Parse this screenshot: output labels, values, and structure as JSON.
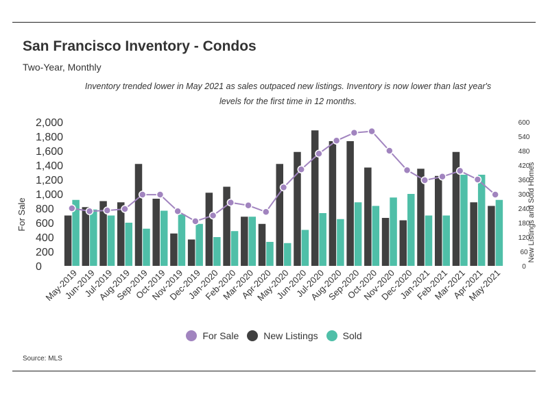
{
  "header": {
    "title": "San Francisco Inventory - Condos",
    "subtitle": "Two-Year, Monthly",
    "note": "Inventory trended lower in May 2021 as sales outpaced new listings. Inventory is now lower than last year's levels for the first time in 12 months."
  },
  "footer": {
    "source": "Source:  MLS"
  },
  "colors": {
    "for_sale": "#a184bf",
    "new_listings": "#404040",
    "sold": "#4fbfa8"
  },
  "chart_data": {
    "type": "bar",
    "categories": [
      "May-2019",
      "Jun-2019",
      "Jul-2019",
      "Aug-2019",
      "Sep-2019",
      "Oct-2019",
      "Nov-2019",
      "Dec-2019",
      "Jan-2020",
      "Feb-2020",
      "Mar-2020",
      "Apr-2020",
      "May-2020",
      "Jun-2020",
      "Jul-2020",
      "Aug-2020",
      "Sep-2020",
      "Oct-2020",
      "Nov-2020",
      "Dec-2020",
      "Jan-2021",
      "Feb-2021",
      "Mar-2021",
      "Apr-2021",
      "May-2021"
    ],
    "series": [
      {
        "name": "For Sale",
        "kind": "line",
        "axis": "left",
        "values": [
          800,
          760,
          770,
          790,
          990,
          990,
          760,
          620,
          700,
          880,
          840,
          750,
          1090,
          1340,
          1560,
          1740,
          1850,
          1870,
          1600,
          1330,
          1190,
          1240,
          1320,
          1200,
          990
        ]
      },
      {
        "name": "New Listings",
        "kind": "bar",
        "axis": "right",
        "values": [
          210,
          245,
          270,
          265,
          425,
          280,
          135,
          110,
          305,
          330,
          205,
          175,
          425,
          475,
          565,
          520,
          520,
          410,
          200,
          190,
          405,
          375,
          475,
          265,
          250
        ]
      },
      {
        "name": "Sold",
        "kind": "bar",
        "axis": "right",
        "values": [
          275,
          235,
          210,
          180,
          155,
          230,
          215,
          175,
          120,
          145,
          205,
          100,
          95,
          150,
          220,
          195,
          265,
          250,
          285,
          300,
          210,
          210,
          380,
          380,
          275
        ]
      }
    ],
    "ylabel": "For Sale",
    "y2label": "New Listings and Sold Homes",
    "ylim": [
      0,
      2000
    ],
    "y2lim": [
      0,
      600
    ],
    "yticks": [
      "0",
      "200",
      "400",
      "600",
      "800",
      "1,000",
      "1,200",
      "1,400",
      "1,600",
      "1,800",
      "2,000"
    ],
    "y2ticks": [
      "0",
      "60",
      "120",
      "180",
      "240",
      "300",
      "360",
      "420",
      "480",
      "540",
      "600"
    ],
    "legend": [
      "For Sale",
      "New Listings",
      "Sold"
    ],
    "legend_position": "bottom",
    "grid": false
  }
}
